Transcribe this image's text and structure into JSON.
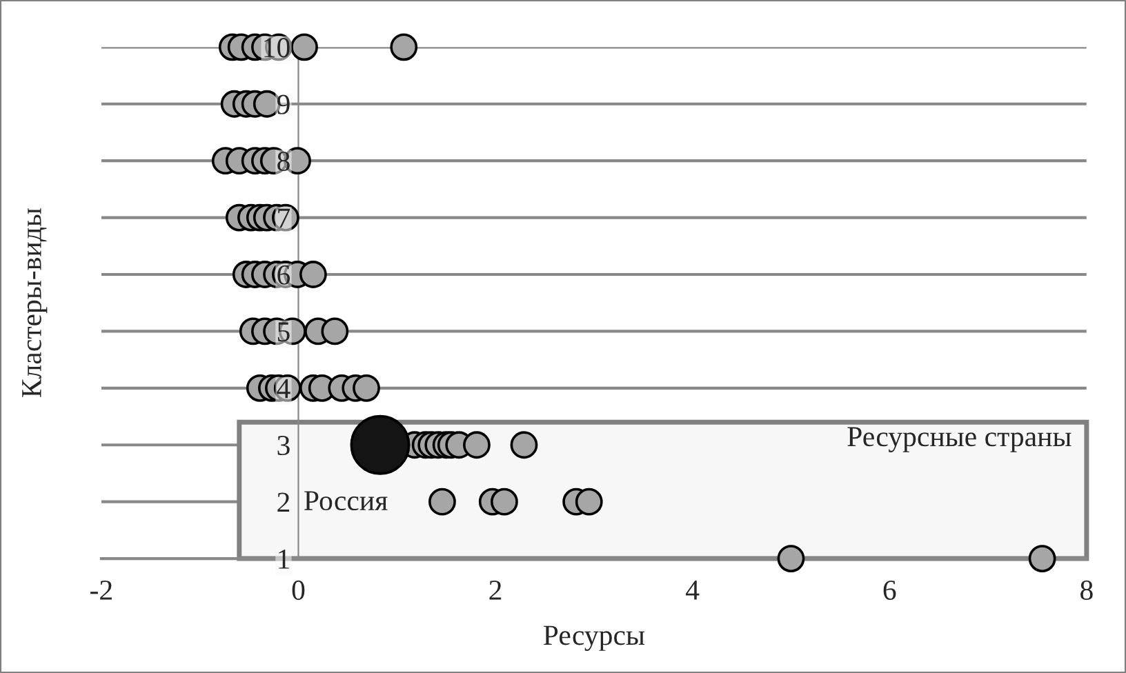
{
  "chart_data": {
    "type": "scatter",
    "xlabel": "Ресурсы",
    "ylabel": "Кластеры-виды",
    "xlim": [
      -2,
      8
    ],
    "xticks": [
      -2,
      0,
      2,
      4,
      6,
      8
    ],
    "ylim": [
      1,
      10
    ],
    "yticks": [
      1,
      2,
      3,
      4,
      5,
      6,
      7,
      8,
      9,
      10
    ],
    "grid": "y",
    "legend": false,
    "marker": "circle",
    "series": [
      {
        "color": "#a6a6a6",
        "x": [
          5.0,
          7.55,
          1.46,
          1.97,
          2.09,
          2.82,
          2.95,
          1.18,
          1.29,
          1.35,
          1.42,
          1.5,
          1.55,
          1.63,
          1.81,
          2.29,
          -0.39,
          -0.27,
          -0.2,
          -0.11,
          0.15,
          0.24,
          0.44,
          0.58,
          0.69,
          -0.46,
          -0.34,
          -0.22,
          -0.06,
          0.2,
          0.37,
          -0.53,
          -0.44,
          -0.34,
          -0.22,
          -0.13,
          -0.01,
          0.15,
          -0.6,
          -0.48,
          -0.39,
          -0.32,
          -0.22,
          -0.13,
          -0.74,
          -0.6,
          -0.44,
          -0.34,
          -0.25,
          -0.01,
          -0.65,
          -0.53,
          -0.44,
          -0.32,
          -0.67,
          -0.58,
          -0.44,
          -0.34,
          -0.2,
          0.06,
          1.07
        ],
        "values": [
          1,
          1,
          2,
          2,
          2,
          2,
          2,
          3,
          3,
          3,
          3,
          3,
          3,
          3,
          3,
          3,
          4,
          4,
          4,
          4,
          4,
          4,
          4,
          4,
          4,
          5,
          5,
          5,
          5,
          5,
          5,
          6,
          6,
          6,
          6,
          6,
          6,
          6,
          7,
          7,
          7,
          7,
          7,
          7,
          8,
          8,
          8,
          8,
          8,
          8,
          9,
          9,
          9,
          9,
          10,
          10,
          10,
          10,
          10,
          10,
          10
        ]
      },
      {
        "color": "#141414",
        "x": [
          0.83
        ],
        "values": [
          3
        ]
      }
    ],
    "bands": [
      {
        "axis": "y",
        "from": 1,
        "to": 3.4,
        "label": "Ресурсные страны",
        "color": "#f7f7f7"
      }
    ],
    "annotations": [
      {
        "text": "Россия",
        "x": 0.83,
        "y": 3
      }
    ]
  }
}
